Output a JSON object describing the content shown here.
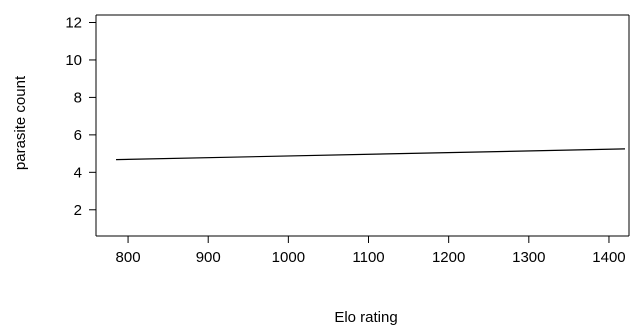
{
  "chart_data": {
    "type": "line",
    "title": "",
    "xlabel": "Elo rating",
    "ylabel": "parasite count",
    "xlim": [
      760,
      1425
    ],
    "ylim": [
      0.6,
      12.4
    ],
    "xticks": [
      800,
      900,
      1000,
      1100,
      1200,
      1300,
      1400
    ],
    "yticks": [
      2,
      4,
      6,
      8,
      10,
      12
    ],
    "grid": false,
    "legend": "none",
    "colors": {
      "line": "#000000",
      "axis": "#000000",
      "background": "#ffffff"
    },
    "series": [
      {
        "x": [
          785,
          1420
        ],
        "y": [
          4.68,
          5.25
        ]
      }
    ]
  }
}
